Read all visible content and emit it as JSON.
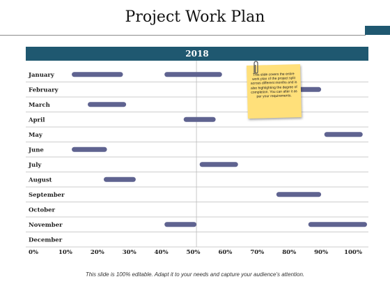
{
  "title": "Project Work Plan",
  "year_header": "2018",
  "footer_text": "This slide is 100% editable. Adapt it to your needs and capture your audience's attention.",
  "note_text": "This slide covers the entire work plan of the project split across different months and is also highlighting the degree of completion. You can alter it as per your requirements.",
  "colors": {
    "header": "#1f5870",
    "bar": "#5f6390",
    "grid": "#bcbcbc",
    "note": "#ffe07a"
  },
  "icons": {
    "clip": "paperclip-icon"
  },
  "chart_data": {
    "type": "bar",
    "orientation": "horizontal-range",
    "title": "",
    "xlabel": "",
    "ylabel": "",
    "xlim": [
      0,
      100
    ],
    "x_ticks": [
      "0%",
      "10%",
      "20%",
      "30%",
      "40%",
      "50%",
      "60%",
      "70%",
      "80%",
      "90%",
      "100%"
    ],
    "categories": [
      "January",
      "February",
      "March",
      "April",
      "May",
      "June",
      "July",
      "August",
      "September",
      "October",
      "November",
      "December"
    ],
    "ranges": [
      [
        {
          "start": 12,
          "end": 28
        },
        {
          "start": 41,
          "end": 59
        }
      ],
      [
        {
          "start": 83,
          "end": 90
        }
      ],
      [
        {
          "start": 17,
          "end": 29
        }
      ],
      [
        {
          "start": 47,
          "end": 57
        }
      ],
      [
        {
          "start": 91,
          "end": 103
        }
      ],
      [
        {
          "start": 12,
          "end": 23
        }
      ],
      [
        {
          "start": 52,
          "end": 64
        }
      ],
      [
        {
          "start": 22,
          "end": 32
        }
      ],
      [
        {
          "start": 76,
          "end": 90
        }
      ],
      [],
      [
        {
          "start": 41,
          "end": 51
        },
        {
          "start": 86,
          "end": 105
        }
      ],
      []
    ],
    "reference_line": 51
  }
}
